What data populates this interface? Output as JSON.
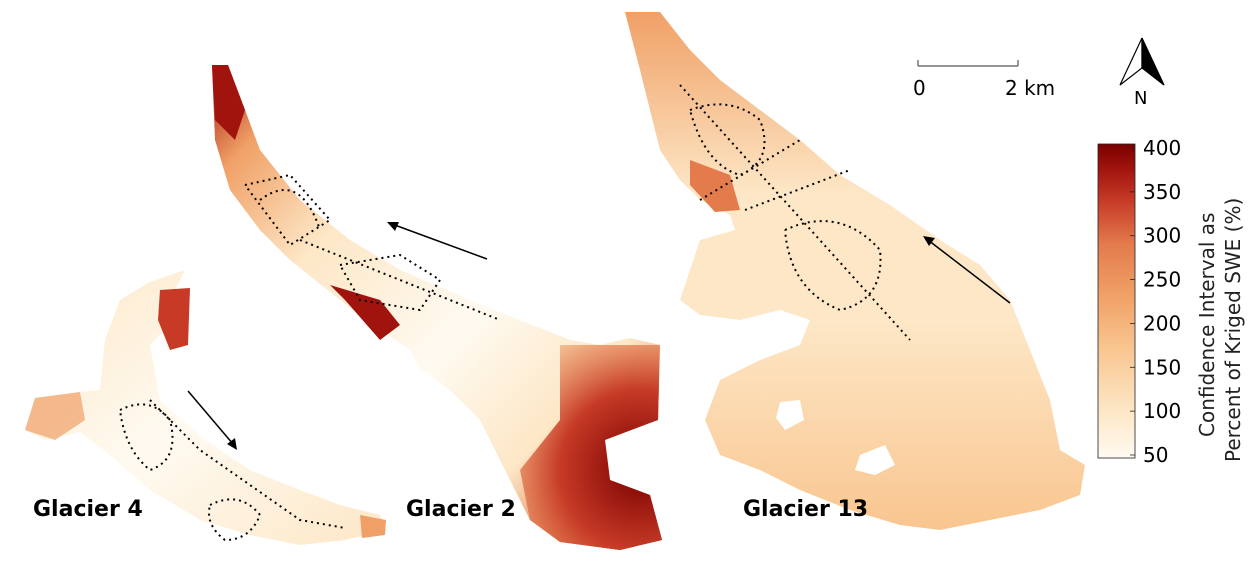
{
  "map": {
    "glaciers": [
      {
        "name": "Glacier 4"
      },
      {
        "name": "Glacier 2"
      },
      {
        "name": "Glacier 13"
      }
    ],
    "scale_bar": {
      "start_label": "0",
      "end_label": "2 km"
    },
    "north_arrow": {
      "label": "N"
    },
    "colorbar": {
      "title_line1": "Confidence Interval as",
      "title_line2": "Percent of Kriged SWE (%)",
      "ticks": [
        "400",
        "350",
        "300",
        "250",
        "200",
        "150",
        "100",
        "50"
      ],
      "range": [
        50,
        400
      ],
      "colors": [
        "#fffaf1",
        "#fde7c6",
        "#f9c58f",
        "#f0a066",
        "#e37b4d",
        "#c63a26",
        "#a1140e",
        "#7a0000"
      ]
    }
  }
}
